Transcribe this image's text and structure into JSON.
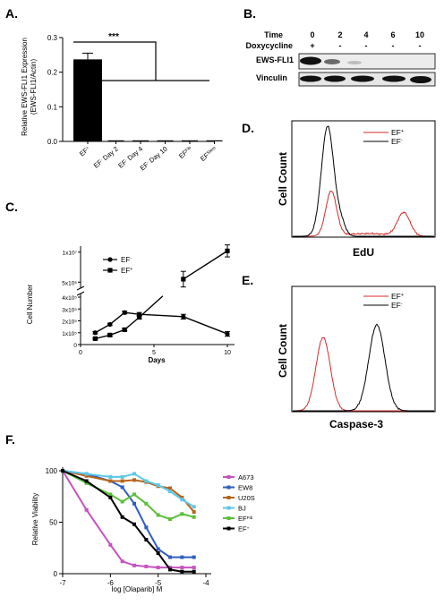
{
  "panels": {
    "A": "A.",
    "B": "B.",
    "C": "C.",
    "D": "D.",
    "E": "E.",
    "F": "F."
  },
  "colors": {
    "red": "#d42b2b",
    "black": "#000000",
    "A673": "#c653c0",
    "EW8": "#2f5fbf",
    "U20S": "#b5651d",
    "BJ": "#5bc8e8",
    "EFFib": "#5cbf3a",
    "EFplus": "#000000"
  },
  "panelA": {
    "type": "bar",
    "ylabel_line1": "Relative EWS-FLI1 Expression",
    "ylabel_line2": "(EWS-FLI1/Actin)",
    "significance": "***",
    "ticks": [
      "0.0",
      "0.1",
      "0.2",
      "0.3"
    ],
    "categories": [
      {
        "base": "EF",
        "sup": "+",
        "rest": ""
      },
      {
        "base": "EF",
        "sup": "-",
        "rest": " Day 2"
      },
      {
        "base": "EF",
        "sup": "-",
        "rest": " Day 4"
      },
      {
        "base": "EF",
        "sup": "-",
        "rest": " Day 10"
      },
      {
        "base": "EF",
        "sup": "Fib",
        "rest": ""
      },
      {
        "base": "EF",
        "sup": "Stem",
        "rest": ""
      }
    ],
    "values": [
      0.237,
      0.002,
      0.002,
      0.002,
      0.002,
      0.003
    ],
    "errors": [
      0.018,
      0.001,
      0.001,
      0.001,
      0.001,
      0.001
    ],
    "ylim": [
      0,
      0.3
    ]
  },
  "panelB": {
    "time_label": "Time",
    "dox_label": "Doxycycline",
    "times": [
      "0",
      "2",
      "4",
      "6",
      "10"
    ],
    "dox": [
      "+",
      "-",
      "-",
      "-",
      "-"
    ],
    "row1": "EWS-FLI1",
    "row2": "Vinculin"
  },
  "panelC": {
    "type": "line",
    "xlabel": "Days",
    "ylabel": "Cell Number",
    "upper_ticks": [
      "1x10⁷",
      "5x10⁶"
    ],
    "lower_ticks": [
      "4x10⁵",
      "3x10⁵",
      "2x10⁵",
      "1x10⁵",
      "0"
    ],
    "x_ticks": [
      "0",
      "5",
      "10"
    ],
    "legend": [
      {
        "base": "EF",
        "sup": "-",
        "marker": "circle"
      },
      {
        "base": "EF",
        "sup": "+",
        "marker": "square"
      }
    ],
    "series": [
      {
        "marker": "circle",
        "x": [
          1,
          2,
          3,
          4,
          7,
          10
        ],
        "y": [
          100000,
          170000,
          270000,
          255000,
          235000,
          90000
        ],
        "err": [
          10000,
          10000,
          12000,
          15000,
          20000,
          20000
        ]
      },
      {
        "marker": "square",
        "x": [
          1,
          2,
          3,
          4,
          7,
          10
        ],
        "y": [
          50000,
          80000,
          125000,
          230000,
          5500000,
          10200000
        ],
        "err": [
          5000,
          8000,
          10000,
          15000,
          1300000,
          1000000
        ]
      }
    ]
  },
  "panelD": {
    "ylabel": "Cell Count",
    "xlabel": "EdU",
    "legend": [
      {
        "base": "EF",
        "sup": "+",
        "color": "red"
      },
      {
        "base": "EF",
        "sup": "-",
        "color": "black"
      }
    ]
  },
  "panelE": {
    "ylabel": "Cell Count",
    "xlabel": "Caspase-3",
    "legend": [
      {
        "base": "EF",
        "sup": "+",
        "color": "red"
      },
      {
        "base": "EF",
        "sup": "-",
        "color": "black"
      }
    ]
  },
  "panelF": {
    "type": "line",
    "xlabel": "log [Olaparib] M",
    "ylabel": "Relative Viability",
    "x_ticks": [
      "-7",
      "-6",
      "-5",
      "-4"
    ],
    "y_ticks": [
      "100",
      "50",
      "0"
    ],
    "xlim": [
      -7,
      -4
    ],
    "ylim": [
      0,
      100
    ],
    "x": [
      -7,
      -6.5,
      -6,
      -5.75,
      -5.5,
      -5.25,
      -5,
      -4.75,
      -4.5,
      -4.25
    ],
    "series": [
      {
        "name": "A673",
        "sup": "",
        "color": "A673",
        "y": [
          100,
          62,
          28,
          12,
          8,
          7,
          6,
          6,
          6,
          6
        ]
      },
      {
        "name": "EW8",
        "sup": "",
        "color": "EW8",
        "y": [
          100,
          97,
          90,
          84,
          68,
          45,
          24,
          16,
          16,
          16
        ]
      },
      {
        "name": "U20S",
        "sup": "",
        "color": "U20S",
        "y": [
          100,
          95,
          90,
          90,
          91,
          89,
          85,
          83,
          74,
          60
        ]
      },
      {
        "name": "BJ",
        "sup": "",
        "color": "BJ",
        "y": [
          100,
          97,
          94,
          94,
          97,
          90,
          86,
          80,
          72,
          65
        ]
      },
      {
        "name": "EF",
        "sup": "Fib",
        "color": "EFFib",
        "y": [
          100,
          88,
          77,
          70,
          77,
          68,
          57,
          53,
          58,
          55
        ]
      },
      {
        "name": "EF",
        "sup": "+",
        "color": "EFplus",
        "y": [
          100,
          90,
          74,
          55,
          48,
          33,
          20,
          4,
          2,
          2
        ]
      }
    ]
  }
}
